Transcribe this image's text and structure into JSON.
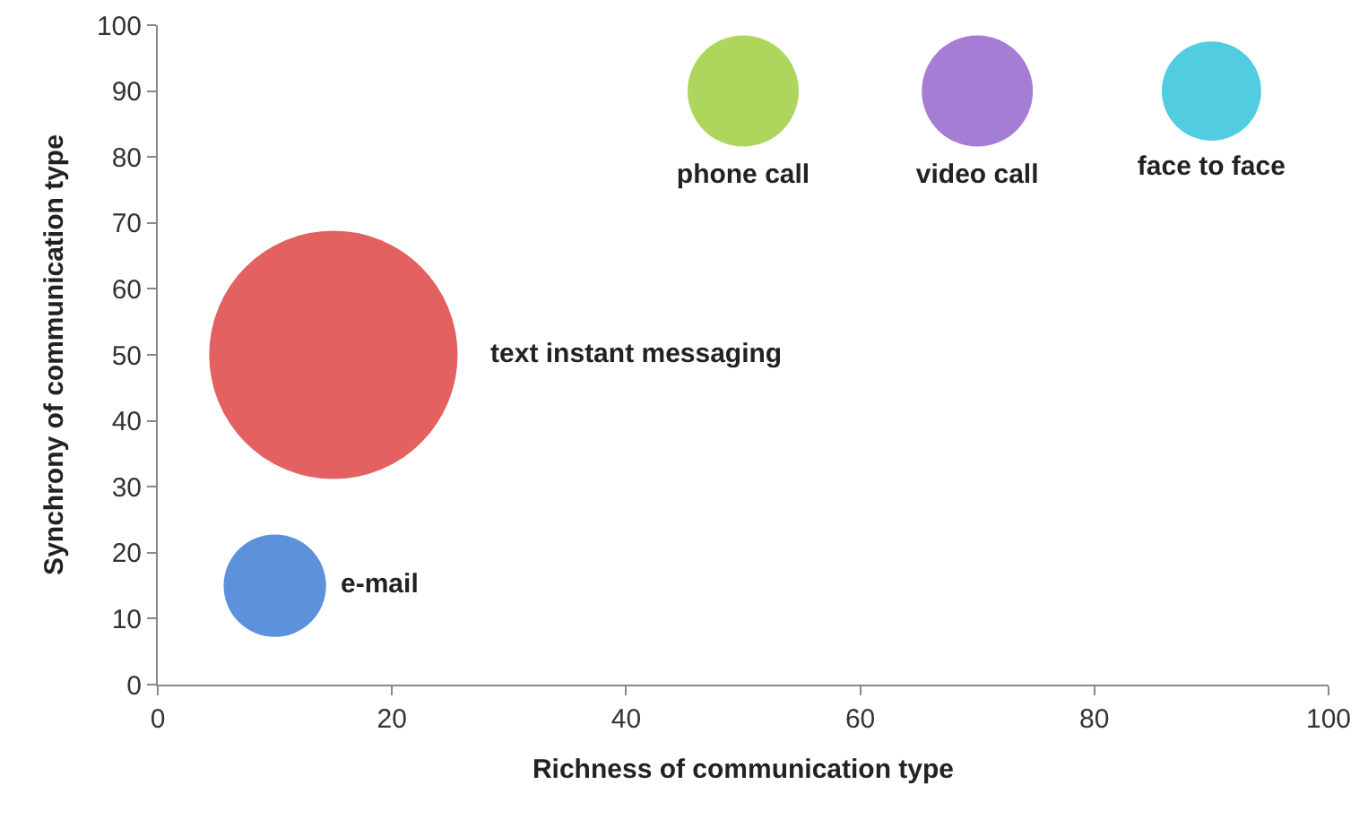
{
  "chart_data": {
    "type": "bubble",
    "xlabel": "Richness of communication type",
    "ylabel": "Synchrony of communication type",
    "series": [
      {
        "name": "e-mail",
        "color": "#4a86d8",
        "x": [
          10
        ],
        "values": [
          15
        ],
        "sizes": [
          0.17
        ]
      },
      {
        "name": "text instant messaging",
        "color": "#e05050",
        "x": [
          15
        ],
        "values": [
          50
        ],
        "sizes": [
          1
        ]
      },
      {
        "name": "phone call",
        "color": "#a6d24a",
        "x": [
          50
        ],
        "values": [
          90
        ],
        "sizes": [
          0.2
        ]
      },
      {
        "name": "video call",
        "color": "#9b6fd0",
        "x": [
          70
        ],
        "values": [
          90
        ],
        "sizes": [
          0.2
        ]
      },
      {
        "name": "face to face",
        "color": "#3ec6de",
        "x": [
          90
        ],
        "values": [
          90
        ],
        "sizes": [
          0.16
        ]
      }
    ],
    "xlim": [
      0,
      100
    ],
    "xticks": [
      0,
      20,
      40,
      60,
      80,
      100
    ],
    "ylim": [
      0,
      100
    ],
    "yticks": [
      0,
      10,
      20,
      30,
      40,
      50,
      60,
      70,
      80,
      90,
      100
    ],
    "grid": false,
    "legend": false
  }
}
